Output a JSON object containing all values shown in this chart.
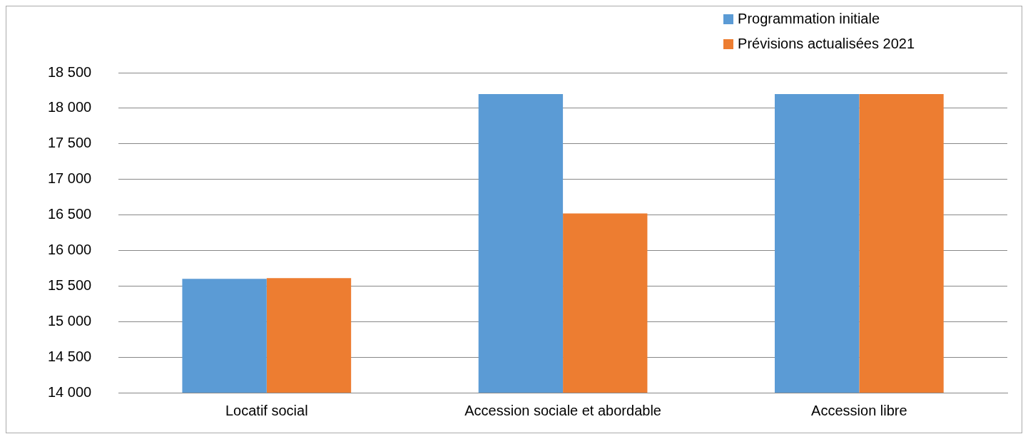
{
  "chart_data": {
    "type": "bar",
    "categories": [
      "Locatif social",
      "Accession sociale et abordable",
      "Accession libre"
    ],
    "series": [
      {
        "name": "Programmation initiale",
        "color": "#5b9bd5",
        "values": [
          15600,
          18200,
          18200
        ]
      },
      {
        "name": "Prévisions actualisées 2021",
        "color": "#ed7d31",
        "values": [
          15610,
          16520,
          18200
        ]
      }
    ],
    "ylim": [
      14000,
      18500
    ],
    "yticks": [
      {
        "value": 14000,
        "label": "14 000"
      },
      {
        "value": 14500,
        "label": "14 500"
      },
      {
        "value": 15000,
        "label": "15 000"
      },
      {
        "value": 15500,
        "label": "15 500"
      },
      {
        "value": 16000,
        "label": "16 000"
      },
      {
        "value": 16500,
        "label": "16 500"
      },
      {
        "value": 17000,
        "label": "17 000"
      },
      {
        "value": 17500,
        "label": "17 500"
      },
      {
        "value": 18000,
        "label": "18 000"
      },
      {
        "value": 18500,
        "label": "18 500"
      }
    ],
    "grid": "y",
    "legend": "top right"
  }
}
